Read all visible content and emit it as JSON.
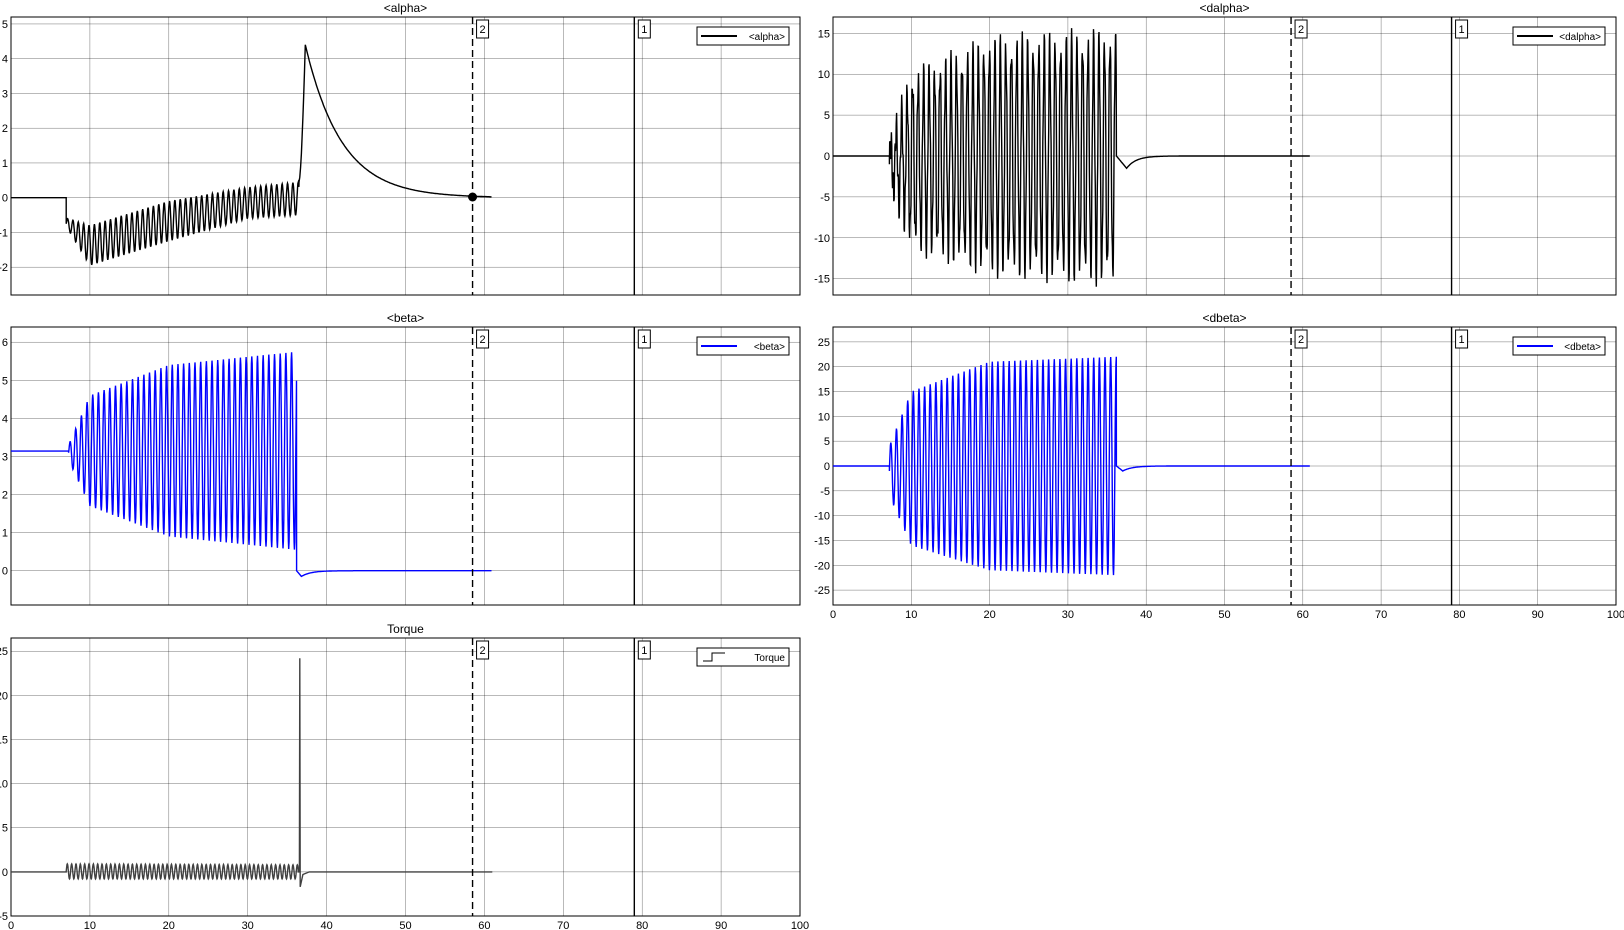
{
  "colors": {
    "black": "#000000",
    "blue": "#0000ff",
    "torque": "#404040",
    "grid": "#000000",
    "background": "#ffffff"
  },
  "cursors": [
    {
      "label": "2",
      "x": 58.5,
      "style": "dashed"
    },
    {
      "label": "1",
      "x": 79.0,
      "style": "solid"
    }
  ],
  "chart_data": [
    {
      "type": "line",
      "title": "<alpha>",
      "xlim": [
        0,
        100
      ],
      "ylim": [
        -2.8,
        5.2
      ],
      "yticks": [
        5,
        4,
        3,
        2,
        1,
        0,
        -1,
        -2
      ],
      "ytick_labels": [
        "5",
        "4",
        "3",
        "2",
        "1",
        "0",
        "-1",
        "-2"
      ],
      "xticks": [
        0,
        10,
        20,
        30,
        40,
        50,
        60,
        70,
        80,
        90,
        100
      ],
      "xtick_labels": [
        "0",
        "10",
        "20",
        "30",
        "40",
        "50",
        "60",
        "70",
        "80",
        "90",
        "100"
      ],
      "show_xtick_labels": false,
      "grid": true,
      "legend": {
        "position": "top-right",
        "entries": [
          {
            "name": "<alpha>",
            "color": "#000000",
            "marker": "line"
          }
        ]
      },
      "marker_point": {
        "x": 58.5,
        "y": 0.02
      },
      "series": [
        {
          "name": "<alpha>",
          "color": "#000000",
          "kind": "oscillation",
          "x_range": [
            0,
            61
          ],
          "segments": [
            {
              "x": [
                0,
                7
              ],
              "pre": 0
            },
            {
              "x": [
                7,
                36.5
              ],
              "period": 0.68,
              "upper": [
                [
                  7.2,
                  -0.6
                ],
                [
                  10,
                  -0.8
                ],
                [
                  20,
                  -0.1
                ],
                [
                  30,
                  0.3
                ],
                [
                  36.5,
                  0.45
                ]
              ],
              "lower": [
                [
                  7.2,
                  -0.9
                ],
                [
                  10,
                  -1.95
                ],
                [
                  20,
                  -1.25
                ],
                [
                  30,
                  -0.6
                ],
                [
                  36.5,
                  -0.5
                ]
              ]
            },
            {
              "x": [
                36.5,
                61
              ],
              "peak": {
                "x": 37.3,
                "y": 4.4
              },
              "decay_tau": 4.6,
              "end": 0.0
            }
          ]
        }
      ]
    },
    {
      "type": "line",
      "title": "<dalpha>",
      "xlim": [
        0,
        100
      ],
      "ylim": [
        -17,
        17
      ],
      "yticks": [
        15,
        10,
        5,
        0,
        -5,
        -10,
        -15
      ],
      "ytick_labels": [
        "15",
        "10",
        "5",
        "0",
        "-5",
        "-10",
        "-15"
      ],
      "xticks": [
        0,
        10,
        20,
        30,
        40,
        50,
        60,
        70,
        80,
        90,
        100
      ],
      "xtick_labels": [
        "0",
        "10",
        "20",
        "30",
        "40",
        "50",
        "60",
        "70",
        "80",
        "90",
        "100"
      ],
      "show_xtick_labels": false,
      "grid": true,
      "legend": {
        "position": "top-right",
        "entries": [
          {
            "name": "<dalpha>",
            "color": "#000000",
            "marker": "line"
          }
        ]
      },
      "series": [
        {
          "name": "<dalpha>",
          "color": "#000000",
          "kind": "oscillation",
          "x_range": [
            0,
            61
          ],
          "segments": [
            {
              "x": [
                0,
                7.2
              ],
              "pre": 0
            },
            {
              "x": [
                7.2,
                36.2
              ],
              "period": 0.7,
              "upper": [
                [
                  7.2,
                  1
                ],
                [
                  10,
                  9
                ],
                [
                  20,
                  13
                ],
                [
                  36.2,
                  14
                ]
              ],
              "lower": [
                [
                  7.2,
                  -3
                ],
                [
                  10,
                  -10
                ],
                [
                  20,
                  -13
                ],
                [
                  36.2,
                  -14.2
                ]
              ],
              "jitter": 2
            },
            {
              "x": [
                36.2,
                61
              ],
              "dip": {
                "x": 37.5,
                "y": -1.5
              },
              "end": 0
            }
          ]
        }
      ]
    },
    {
      "type": "line",
      "title": "<beta>",
      "xlim": [
        0,
        100
      ],
      "ylim": [
        -0.9,
        6.4
      ],
      "yticks": [
        6,
        5,
        4,
        3,
        2,
        1,
        0
      ],
      "ytick_labels": [
        "6",
        "5",
        "4",
        "3",
        "2",
        "1",
        "0"
      ],
      "xticks": [
        0,
        10,
        20,
        30,
        40,
        50,
        60,
        70,
        80,
        90,
        100
      ],
      "xtick_labels": [
        "0",
        "10",
        "20",
        "30",
        "40",
        "50",
        "60",
        "70",
        "80",
        "90",
        "100"
      ],
      "show_xtick_labels": false,
      "grid": true,
      "legend": {
        "position": "top-right",
        "entries": [
          {
            "name": "<beta>",
            "color": "#0000ff",
            "marker": "line"
          }
        ]
      },
      "series": [
        {
          "name": "<beta>",
          "color": "#0000ff",
          "kind": "oscillation",
          "x_range": [
            0,
            61
          ],
          "segments": [
            {
              "x": [
                0,
                7.3
              ],
              "pre": 3.14
            },
            {
              "x": [
                7.3,
                36.2
              ],
              "period": 0.72,
              "upper": [
                [
                  7.3,
                  3.3
                ],
                [
                  10,
                  4.6
                ],
                [
                  20,
                  5.4
                ],
                [
                  36.2,
                  5.75
                ]
              ],
              "lower": [
                [
                  7.3,
                  2.9
                ],
                [
                  10,
                  1.7
                ],
                [
                  20,
                  0.9
                ],
                [
                  36.2,
                  0.55
                ]
              ]
            },
            {
              "x": [
                36.2,
                61
              ],
              "dip": {
                "x": 36.8,
                "y": -0.15
              },
              "end": 0
            }
          ]
        }
      ]
    },
    {
      "type": "line",
      "title": "<dbeta>",
      "xlim": [
        0,
        100
      ],
      "ylim": [
        -28,
        28
      ],
      "yticks": [
        25,
        20,
        15,
        10,
        5,
        0,
        -5,
        -10,
        -15,
        -20,
        -25
      ],
      "ytick_labels": [
        "25",
        "20",
        "15",
        "10",
        "5",
        "0",
        "-5",
        "-10",
        "-15",
        "-20",
        "-25"
      ],
      "xticks": [
        0,
        10,
        20,
        30,
        40,
        50,
        60,
        70,
        80,
        90,
        100
      ],
      "xtick_labels": [
        "0",
        "10",
        "20",
        "30",
        "40",
        "50",
        "60",
        "70",
        "80",
        "90",
        "100"
      ],
      "show_xtick_labels": true,
      "grid": true,
      "legend": {
        "position": "top-right",
        "entries": [
          {
            "name": "<dbeta>",
            "color": "#0000ff",
            "marker": "line"
          }
        ]
      },
      "series": [
        {
          "name": "<dbeta>",
          "color": "#0000ff",
          "kind": "oscillation",
          "x_range": [
            0,
            61
          ],
          "segments": [
            {
              "x": [
                0,
                7.2
              ],
              "pre": 0
            },
            {
              "x": [
                7.2,
                36.2
              ],
              "period": 0.72,
              "upper": [
                [
                  7.2,
                  4
                ],
                [
                  10,
                  15
                ],
                [
                  20,
                  21
                ],
                [
                  36.2,
                  22
                ]
              ],
              "lower": [
                [
                  7.2,
                  -6
                ],
                [
                  10,
                  -16
                ],
                [
                  20,
                  -21
                ],
                [
                  36.2,
                  -22
                ]
              ]
            },
            {
              "x": [
                36.2,
                61
              ],
              "dip": {
                "x": 37,
                "y": -1
              },
              "end": 0
            }
          ]
        }
      ]
    },
    {
      "type": "line",
      "title": "Torque",
      "xlim": [
        0,
        100
      ],
      "ylim": [
        -5,
        26.5
      ],
      "yticks": [
        25,
        20,
        15,
        10,
        5,
        0,
        -5
      ],
      "ytick_labels": [
        "25",
        "20",
        "15",
        "10",
        "5",
        "0",
        "-5"
      ],
      "xticks": [
        0,
        10,
        20,
        30,
        40,
        50,
        60,
        70,
        80,
        90,
        100
      ],
      "xtick_labels": [
        "0",
        "10",
        "20",
        "30",
        "40",
        "50",
        "60",
        "70",
        "80",
        "90",
        "100"
      ],
      "show_xtick_labels": true,
      "grid": true,
      "legend": {
        "position": "top-right",
        "entries": [
          {
            "name": "Torque",
            "color": "#404040",
            "marker": "step"
          }
        ]
      },
      "series": [
        {
          "name": "Torque",
          "color": "#404040",
          "kind": "oscillation",
          "x_range": [
            0,
            61
          ],
          "segments": [
            {
              "x": [
                0,
                7
              ],
              "pre": 0
            },
            {
              "x": [
                7,
                36.4
              ],
              "period": 0.55,
              "upper": [
                [
                  7,
                  0.9
                ],
                [
                  36.4,
                  0.8
                ]
              ],
              "lower": [
                [
                  7,
                  -0.8
                ],
                [
                  36.4,
                  -0.8
                ]
              ]
            },
            {
              "x": [
                36.4,
                61
              ],
              "spike": {
                "x": 36.6,
                "y": 24.2,
                "min": -1.7
              },
              "end": 0
            }
          ]
        }
      ]
    }
  ]
}
